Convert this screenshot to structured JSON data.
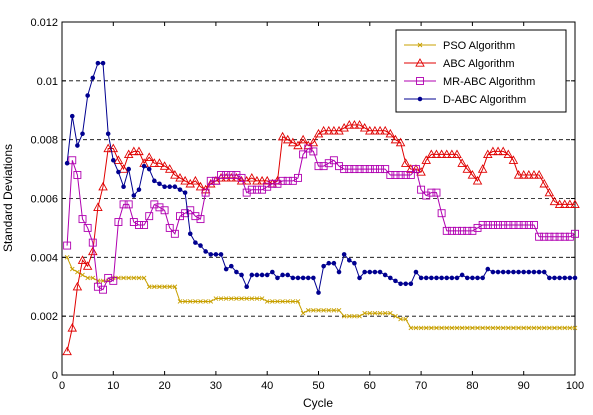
{
  "chart_data": {
    "type": "line",
    "title": "",
    "xlabel": "Cycle",
    "ylabel": "Standard Deviations",
    "xlim": [
      0,
      100
    ],
    "ylim": [
      0,
      0.012
    ],
    "xticks": [
      "0",
      "10",
      "20",
      "30",
      "40",
      "50",
      "60",
      "70",
      "80",
      "90",
      "100"
    ],
    "yticks": [
      "0",
      "0.002",
      "0.004",
      "0.006",
      "0.008",
      "0.01",
      "0.012"
    ],
    "grid": "horizontal dashed",
    "legend_position": "top-right",
    "series": [
      {
        "name": "PSO Algorithm",
        "color": "#c8a000",
        "marker": "x",
        "x": [
          1,
          2,
          3,
          4,
          5,
          6,
          7,
          8,
          9,
          10,
          11,
          12,
          13,
          14,
          15,
          16,
          17,
          18,
          19,
          20,
          21,
          22,
          23,
          24,
          25,
          26,
          27,
          28,
          29,
          30,
          31,
          32,
          33,
          34,
          35,
          36,
          37,
          38,
          39,
          40,
          41,
          42,
          43,
          44,
          45,
          46,
          47,
          48,
          49,
          50,
          51,
          52,
          53,
          54,
          55,
          56,
          57,
          58,
          59,
          60,
          61,
          62,
          63,
          64,
          65,
          66,
          67,
          68,
          69,
          70,
          71,
          72,
          73,
          74,
          75,
          76,
          77,
          78,
          79,
          80,
          81,
          82,
          83,
          84,
          85,
          86,
          87,
          88,
          89,
          90,
          91,
          92,
          93,
          94,
          95,
          96,
          97,
          98,
          99,
          100
        ],
        "values": [
          0.004,
          0.0036,
          0.0035,
          0.0034,
          0.0033,
          0.0033,
          0.0032,
          0.0032,
          0.0032,
          0.0033,
          0.0033,
          0.0033,
          0.0033,
          0.0033,
          0.0033,
          0.0033,
          0.003,
          0.003,
          0.003,
          0.003,
          0.003,
          0.003,
          0.0025,
          0.0025,
          0.0025,
          0.0025,
          0.0025,
          0.0025,
          0.0025,
          0.0026,
          0.0026,
          0.0026,
          0.0026,
          0.0026,
          0.0026,
          0.0026,
          0.0026,
          0.0026,
          0.0026,
          0.0025,
          0.0025,
          0.0025,
          0.0025,
          0.0025,
          0.0025,
          0.0025,
          0.0021,
          0.0022,
          0.0022,
          0.0022,
          0.0022,
          0.0022,
          0.0022,
          0.0022,
          0.002,
          0.002,
          0.002,
          0.002,
          0.0021,
          0.0021,
          0.0021,
          0.0021,
          0.0021,
          0.0021,
          0.002,
          0.0019,
          0.0019,
          0.0016,
          0.0016,
          0.0016,
          0.0016,
          0.0016,
          0.0016,
          0.0016,
          0.0016,
          0.0016,
          0.0016,
          0.0016,
          0.0016,
          0.0016,
          0.0016,
          0.0016,
          0.0016,
          0.0016,
          0.0016,
          0.0016,
          0.0016,
          0.0016,
          0.0016,
          0.0016,
          0.0016,
          0.0016,
          0.0016,
          0.0016,
          0.0016,
          0.0016,
          0.0016,
          0.0016,
          0.0016,
          0.0016
        ]
      },
      {
        "name": "ABC Algorithm",
        "color": "#e00000",
        "marker": "triangle",
        "x": [
          1,
          2,
          3,
          4,
          5,
          6,
          7,
          8,
          9,
          10,
          11,
          12,
          13,
          14,
          15,
          16,
          17,
          18,
          19,
          20,
          21,
          22,
          23,
          24,
          25,
          26,
          27,
          28,
          29,
          30,
          31,
          32,
          33,
          34,
          35,
          36,
          37,
          38,
          39,
          40,
          41,
          42,
          43,
          44,
          45,
          46,
          47,
          48,
          49,
          50,
          51,
          52,
          53,
          54,
          55,
          56,
          57,
          58,
          59,
          60,
          61,
          62,
          63,
          64,
          65,
          66,
          67,
          68,
          69,
          70,
          71,
          72,
          73,
          74,
          75,
          76,
          77,
          78,
          79,
          80,
          81,
          82,
          83,
          84,
          85,
          86,
          87,
          88,
          89,
          90,
          91,
          92,
          93,
          94,
          95,
          96,
          97,
          98,
          99,
          100
        ],
        "values": [
          0.0008,
          0.0016,
          0.003,
          0.0039,
          0.0037,
          0.0042,
          0.0057,
          0.0064,
          0.0077,
          0.0077,
          0.0073,
          0.007,
          0.0075,
          0.0076,
          0.0076,
          0.0072,
          0.0074,
          0.0072,
          0.0072,
          0.0071,
          0.007,
          0.0068,
          0.0067,
          0.0066,
          0.0065,
          0.0066,
          0.0064,
          0.0063,
          0.0065,
          0.0066,
          0.0067,
          0.0067,
          0.0067,
          0.0067,
          0.0066,
          0.0066,
          0.0067,
          0.0066,
          0.0066,
          0.0066,
          0.0065,
          0.0066,
          0.0081,
          0.008,
          0.0079,
          0.0078,
          0.008,
          0.0078,
          0.0079,
          0.0082,
          0.0083,
          0.0083,
          0.0083,
          0.0083,
          0.0084,
          0.0085,
          0.0085,
          0.0085,
          0.0084,
          0.0083,
          0.0083,
          0.0083,
          0.0083,
          0.0082,
          0.008,
          0.0079,
          0.0072,
          0.007,
          0.007,
          0.0069,
          0.0073,
          0.0075,
          0.0075,
          0.0075,
          0.0075,
          0.0075,
          0.0075,
          0.0072,
          0.007,
          0.0068,
          0.0066,
          0.007,
          0.0075,
          0.0076,
          0.0076,
          0.0076,
          0.0075,
          0.0073,
          0.0068,
          0.0068,
          0.0068,
          0.0068,
          0.0068,
          0.0065,
          0.0062,
          0.0059,
          0.0058,
          0.0058,
          0.0058,
          0.0058
        ]
      },
      {
        "name": "MR-ABC Algorithm",
        "color": "#b000b0",
        "marker": "square",
        "x": [
          1,
          2,
          3,
          4,
          5,
          6,
          7,
          8,
          9,
          10,
          11,
          12,
          13,
          14,
          15,
          16,
          17,
          18,
          19,
          20,
          21,
          22,
          23,
          24,
          25,
          26,
          27,
          28,
          29,
          30,
          31,
          32,
          33,
          34,
          35,
          36,
          37,
          38,
          39,
          40,
          41,
          42,
          43,
          44,
          45,
          46,
          47,
          48,
          49,
          50,
          51,
          52,
          53,
          54,
          55,
          56,
          57,
          58,
          59,
          60,
          61,
          62,
          63,
          64,
          65,
          66,
          67,
          68,
          69,
          70,
          71,
          72,
          73,
          74,
          75,
          76,
          77,
          78,
          79,
          80,
          81,
          82,
          83,
          84,
          85,
          86,
          87,
          88,
          89,
          90,
          91,
          92,
          93,
          94,
          95,
          96,
          97,
          98,
          99,
          100
        ],
        "values": [
          0.0044,
          0.0073,
          0.0068,
          0.0053,
          0.005,
          0.0045,
          0.003,
          0.0029,
          0.0033,
          0.0032,
          0.0052,
          0.0058,
          0.0058,
          0.0052,
          0.0051,
          0.0051,
          0.0054,
          0.0058,
          0.0057,
          0.0056,
          0.005,
          0.0048,
          0.0054,
          0.0055,
          0.0056,
          0.0054,
          0.0053,
          0.0062,
          0.0066,
          0.0066,
          0.0068,
          0.0068,
          0.0068,
          0.0068,
          0.0067,
          0.0062,
          0.0063,
          0.0063,
          0.0063,
          0.0064,
          0.0065,
          0.0065,
          0.0066,
          0.0066,
          0.0066,
          0.0067,
          0.0075,
          0.0077,
          0.0076,
          0.0071,
          0.0071,
          0.0072,
          0.0073,
          0.0071,
          0.007,
          0.007,
          0.007,
          0.007,
          0.007,
          0.007,
          0.007,
          0.007,
          0.007,
          0.0068,
          0.0068,
          0.0068,
          0.0068,
          0.0068,
          0.007,
          0.0063,
          0.0061,
          0.0062,
          0.0062,
          0.0055,
          0.0049,
          0.0049,
          0.0049,
          0.0049,
          0.0049,
          0.0049,
          0.005,
          0.0051,
          0.0051,
          0.0051,
          0.0051,
          0.0051,
          0.0051,
          0.0051,
          0.0051,
          0.0051,
          0.0051,
          0.0051,
          0.0047,
          0.0047,
          0.0047,
          0.0047,
          0.0047,
          0.0047,
          0.0047,
          0.0048
        ]
      },
      {
        "name": "D-ABC Algorithm",
        "color": "#000090",
        "marker": "dot",
        "x": [
          1,
          2,
          3,
          4,
          5,
          6,
          7,
          8,
          9,
          10,
          11,
          12,
          13,
          14,
          15,
          16,
          17,
          18,
          19,
          20,
          21,
          22,
          23,
          24,
          25,
          26,
          27,
          28,
          29,
          30,
          31,
          32,
          33,
          34,
          35,
          36,
          37,
          38,
          39,
          40,
          41,
          42,
          43,
          44,
          45,
          46,
          47,
          48,
          49,
          50,
          51,
          52,
          53,
          54,
          55,
          56,
          57,
          58,
          59,
          60,
          61,
          62,
          63,
          64,
          65,
          66,
          67,
          68,
          69,
          70,
          71,
          72,
          73,
          74,
          75,
          76,
          77,
          78,
          79,
          80,
          81,
          82,
          83,
          84,
          85,
          86,
          87,
          88,
          89,
          90,
          91,
          92,
          93,
          94,
          95,
          96,
          97,
          98,
          99,
          100
        ],
        "values": [
          0.0072,
          0.0088,
          0.0078,
          0.0082,
          0.0095,
          0.0101,
          0.0106,
          0.0106,
          0.0082,
          0.0073,
          0.0069,
          0.0064,
          0.007,
          0.0061,
          0.0063,
          0.0071,
          0.007,
          0.0066,
          0.0065,
          0.0064,
          0.0064,
          0.0064,
          0.0063,
          0.0062,
          0.0048,
          0.0045,
          0.0044,
          0.0042,
          0.0041,
          0.0041,
          0.0041,
          0.0036,
          0.0037,
          0.0035,
          0.0034,
          0.003,
          0.0034,
          0.0034,
          0.0034,
          0.0034,
          0.0035,
          0.0033,
          0.0034,
          0.0034,
          0.0033,
          0.0033,
          0.0033,
          0.0033,
          0.0033,
          0.0028,
          0.0037,
          0.0038,
          0.0038,
          0.0035,
          0.0041,
          0.0039,
          0.0038,
          0.0033,
          0.0035,
          0.0035,
          0.0035,
          0.0035,
          0.0034,
          0.0033,
          0.0032,
          0.0031,
          0.0031,
          0.0031,
          0.0035,
          0.0033,
          0.0033,
          0.0033,
          0.0033,
          0.0033,
          0.0033,
          0.0033,
          0.0033,
          0.0034,
          0.0033,
          0.0033,
          0.0033,
          0.0033,
          0.0036,
          0.0035,
          0.0035,
          0.0035,
          0.0035,
          0.0035,
          0.0035,
          0.0035,
          0.0035,
          0.0035,
          0.0035,
          0.0035,
          0.0033,
          0.0033,
          0.0033,
          0.0033,
          0.0033,
          0.0033
        ]
      }
    ]
  }
}
